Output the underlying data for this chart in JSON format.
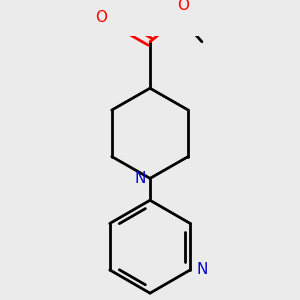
{
  "background_color": "#ebebeb",
  "bond_color": "#000000",
  "oxygen_color": "#ff0000",
  "nitrogen_color": "#0000cd",
  "line_width": 2.0,
  "figsize": [
    3.0,
    3.0
  ],
  "dpi": 100,
  "xlim": [
    -1.8,
    1.8
  ],
  "ylim": [
    -2.6,
    2.2
  ]
}
